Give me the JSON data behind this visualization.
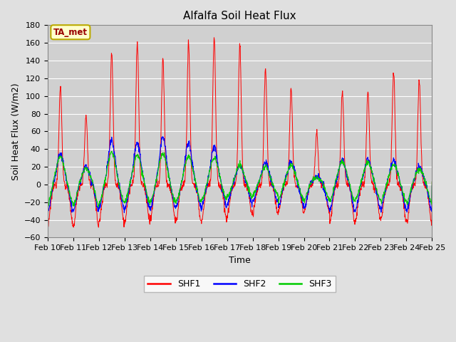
{
  "title": "Alfalfa Soil Heat Flux",
  "xlabel": "Time",
  "ylabel": "Soil Heat Flux (W/m2)",
  "ylim": [
    -60,
    180
  ],
  "yticks": [
    -60,
    -40,
    -20,
    0,
    20,
    40,
    60,
    80,
    100,
    120,
    140,
    160,
    180
  ],
  "n_days": 15,
  "x_tick_labels": [
    "Feb 10",
    "Feb 11",
    "Feb 12",
    "Feb 13",
    "Feb 14",
    "Feb 15",
    "Feb 16",
    "Feb 17",
    "Feb 18",
    "Feb 19",
    "Feb 20",
    "Feb 21",
    "Feb 22",
    "Feb 23",
    "Feb 24",
    "Feb 25"
  ],
  "shf1_color": "#ff0000",
  "shf2_color": "#0000ff",
  "shf3_color": "#00cc00",
  "legend_label1": "SHF1",
  "legend_label2": "SHF2",
  "legend_label3": "SHF3",
  "bg_color": "#e0e0e0",
  "plot_bg_color": "#d0d0d0",
  "annotation_text": "TA_met",
  "annotation_bg": "#ffffcc",
  "annotation_border": "#bbaa00",
  "title_fontsize": 11,
  "tick_fontsize": 8,
  "axis_label_fontsize": 9
}
